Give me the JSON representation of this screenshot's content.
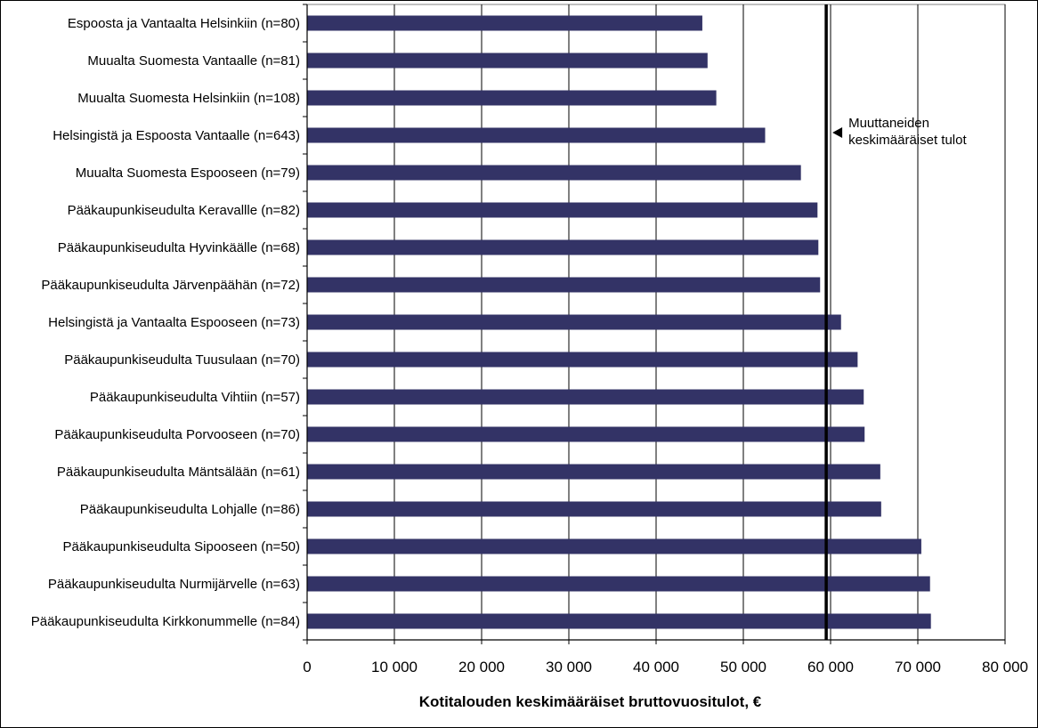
{
  "chart_data": {
    "type": "bar",
    "orientation": "horizontal",
    "categories": [
      "Espoosta ja Vantaalta Helsinkiin (n=80)",
      "Muualta Suomesta Vantaalle (n=81)",
      "Muualta Suomesta Helsinkiin (n=108)",
      "Helsingistä ja Espoosta Vantaalle (n=643)",
      "Muualta Suomesta Espooseen (n=79)",
      "Pääkaupunkiseudulta Keravallle (n=82)",
      "Pääkaupunkiseudulta Hyvinkäälle (n=68)",
      "Pääkaupunkiseudulta Järvenpäähän (n=72)",
      "Helsingistä ja Vantaalta Espooseen (n=73)",
      "Pääkaupunkiseudulta Tuusulaan (n=70)",
      "Pääkaupunkiseudulta Vihtiin (n=57)",
      "Pääkaupunkiseudulta Porvooseen (n=70)",
      "Pääkaupunkiseudulta  Mäntsälään (n=61)",
      "Pääkaupunkiseudulta Lohjalle (n=86)",
      "Pääkaupunkiseudulta Sipooseen (n=50)",
      "Pääkaupunkiseudulta Nurmijärvelle (n=63)",
      "Pääkaupunkiseudulta Kirkkonummelle (n=84)"
    ],
    "values": [
      45300,
      45900,
      46900,
      52500,
      56600,
      58500,
      58600,
      58800,
      61200,
      63100,
      63800,
      63900,
      65700,
      65800,
      70400,
      71400,
      71500
    ],
    "xlim": [
      0,
      80000
    ],
    "xticks": [
      0,
      10000,
      20000,
      30000,
      40000,
      50000,
      60000,
      70000,
      80000
    ],
    "xtick_labels": [
      "0",
      "10 000",
      "20 000",
      "30 000",
      "40 000",
      "50 000",
      "60 000",
      "70 000",
      "80 000"
    ],
    "xlabel": "Kotitalouden keskimääräiset bruttovuositulot, €",
    "ylabel": "",
    "title": "",
    "grid": "vertical",
    "reference_line": {
      "value": 59500,
      "label_lines": [
        "Muuttaneiden",
        "keskimääräiset tulot"
      ]
    },
    "colors": {
      "bar": "#333366",
      "grid": "#000000",
      "reference_line": "#000000"
    }
  }
}
